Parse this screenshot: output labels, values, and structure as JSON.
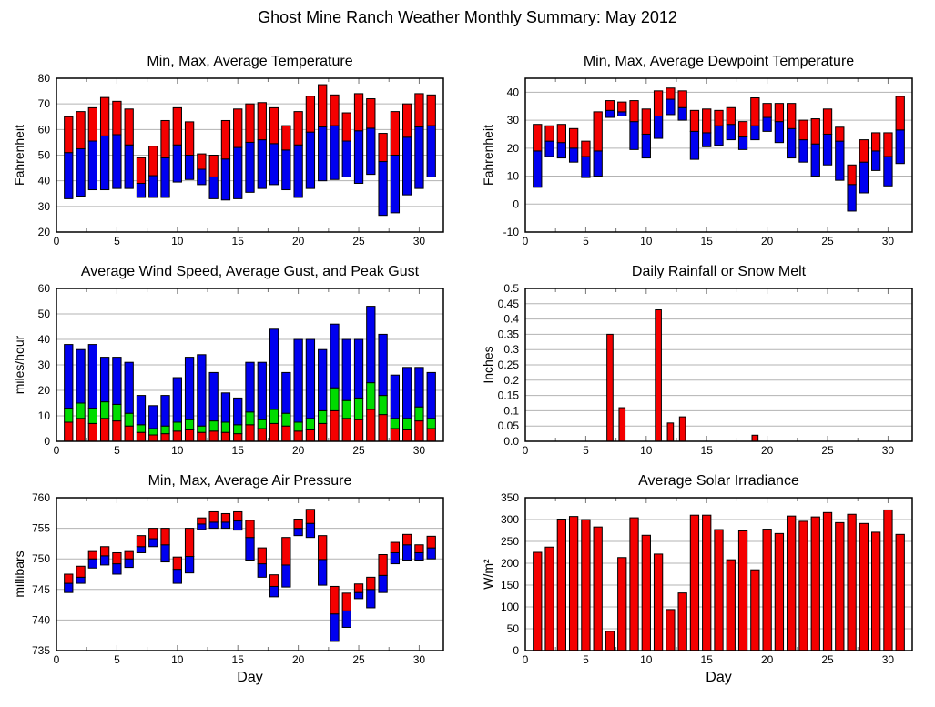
{
  "page": {
    "title": "Ghost Mine Ranch Weather Monthly Summary: May 2012"
  },
  "colors": {
    "max_red": "#f40000",
    "min_blue": "#0000f0",
    "gust_green": "#00dc00",
    "grid_gray": "#b3b3b3",
    "axis_black": "#000000"
  },
  "chart_data": [
    {
      "id": "temperature",
      "type": "floating-bar",
      "title": "Min, Max, Average Temperature",
      "ylabel": "Fahrenheit",
      "xlabel": "",
      "xlim": [
        0,
        32
      ],
      "ylim": [
        20,
        80
      ],
      "xticks": [
        0,
        5,
        10,
        15,
        20,
        25,
        30
      ],
      "x_minor_step": 2.5,
      "ytick_values": [
        20,
        30,
        40,
        50,
        60,
        70,
        80
      ],
      "ytick_labels": [
        "20",
        "30",
        "40",
        "50",
        "60",
        "70",
        "80"
      ],
      "grid": true,
      "bar_width_days": 0.7,
      "days": [
        1,
        2,
        3,
        4,
        5,
        6,
        7,
        8,
        9,
        10,
        11,
        12,
        13,
        14,
        15,
        16,
        17,
        18,
        19,
        20,
        21,
        22,
        23,
        24,
        25,
        26,
        27,
        28,
        29,
        30,
        31
      ],
      "series": [
        {
          "name": "min",
          "values": [
            33,
            34,
            36.5,
            36.5,
            37,
            37,
            33.5,
            33.5,
            33.5,
            39.5,
            40.5,
            38.5,
            33,
            32.5,
            33,
            35.5,
            37,
            38.5,
            36.5,
            33.5,
            37,
            40,
            40.5,
            41.5,
            39,
            42.5,
            26.5,
            27.5,
            34.5,
            37,
            41.5
          ]
        },
        {
          "name": "average",
          "values": [
            51,
            52.5,
            55.5,
            57.5,
            58,
            54,
            39,
            42,
            49,
            54,
            50,
            44.5,
            41.5,
            48.5,
            53,
            55,
            56,
            54.5,
            52,
            54,
            59,
            61,
            61.5,
            55.5,
            59.5,
            60.5,
            47.5,
            50,
            57,
            61,
            61.5
          ]
        },
        {
          "name": "max",
          "values": [
            65,
            67,
            68.5,
            72.5,
            71,
            68,
            49,
            53.5,
            63.5,
            68.5,
            63,
            50.5,
            50,
            63.5,
            68,
            70,
            70.5,
            68.5,
            61.5,
            67,
            73,
            77.5,
            73.5,
            66.5,
            74,
            72,
            58.5,
            67,
            70,
            74,
            73.5
          ]
        }
      ],
      "series_colors": [
        "#0000f0",
        "#f40000"
      ]
    },
    {
      "id": "dewpoint",
      "type": "floating-bar",
      "title": "Min, Max, Average Dewpoint Temperature",
      "ylabel": "Fahrenheit",
      "xlabel": "",
      "xlim": [
        0,
        32
      ],
      "ylim": [
        -10,
        45
      ],
      "xticks": [
        0,
        5,
        10,
        15,
        20,
        25,
        30
      ],
      "x_minor_step": 2.5,
      "ytick_values": [
        -10,
        0,
        10,
        20,
        30,
        40
      ],
      "ytick_labels": [
        "-10",
        "0",
        "10",
        "20",
        "30",
        "40"
      ],
      "grid": true,
      "bar_width_days": 0.7,
      "days": [
        1,
        2,
        3,
        4,
        5,
        6,
        7,
        8,
        9,
        10,
        11,
        12,
        13,
        14,
        15,
        16,
        17,
        18,
        19,
        20,
        21,
        22,
        23,
        24,
        25,
        26,
        27,
        28,
        29,
        30,
        31
      ],
      "series": [
        {
          "name": "min",
          "values": [
            6,
            17,
            16.5,
            15,
            9.5,
            10,
            31,
            31.5,
            19.5,
            16.5,
            23.5,
            32,
            30,
            16,
            20.5,
            21,
            23,
            19.5,
            23,
            26,
            22,
            16.5,
            15,
            10,
            14,
            8.5,
            -2.5,
            4,
            12,
            6.5,
            14.5
          ]
        },
        {
          "name": "average",
          "values": [
            19,
            22.5,
            22,
            20,
            17,
            19,
            33.5,
            33,
            29.5,
            25,
            31.5,
            37.5,
            34.5,
            26,
            25.5,
            28,
            28.5,
            24,
            28,
            31,
            29.5,
            27,
            23,
            21.5,
            25,
            22.5,
            7,
            15,
            19,
            17,
            26.5
          ]
        },
        {
          "name": "max",
          "values": [
            28.5,
            28,
            28.5,
            27,
            22.5,
            33,
            37,
            36.5,
            37,
            34,
            40.5,
            41.5,
            40.5,
            33.5,
            34,
            33.5,
            34.5,
            29.5,
            38,
            36,
            36,
            36,
            30,
            30.5,
            34,
            27.5,
            14,
            23,
            25.5,
            25.5,
            38.5
          ]
        }
      ],
      "series_colors": [
        "#0000f0",
        "#f40000"
      ]
    },
    {
      "id": "wind",
      "type": "stacked-bar",
      "title": "Average Wind Speed, Average Gust, and Peak Gust",
      "ylabel": "miles/hour",
      "xlabel": "",
      "xlim": [
        0,
        32
      ],
      "ylim": [
        0,
        60
      ],
      "xticks": [
        0,
        5,
        10,
        15,
        20,
        25,
        30
      ],
      "x_minor_step": 2.5,
      "ytick_values": [
        0,
        10,
        20,
        30,
        40,
        50,
        60
      ],
      "ytick_labels": [
        "0",
        "10",
        "20",
        "30",
        "40",
        "50",
        "60"
      ],
      "grid": true,
      "bar_width_days": 0.7,
      "days": [
        1,
        2,
        3,
        4,
        5,
        6,
        7,
        8,
        9,
        10,
        11,
        12,
        13,
        14,
        15,
        16,
        17,
        18,
        19,
        20,
        21,
        22,
        23,
        24,
        25,
        26,
        27,
        28,
        29,
        30,
        31
      ],
      "series": [
        {
          "name": "average-wind-speed",
          "values": [
            7.5,
            9,
            7,
            9,
            8,
            6,
            3.5,
            2.5,
            3,
            4,
            4.5,
            3.5,
            4,
            3.5,
            3,
            6.5,
            5,
            7,
            6,
            4,
            4.5,
            7,
            12,
            9,
            8.5,
            12.5,
            10.5,
            5,
            4.5,
            8,
            5
          ]
        },
        {
          "name": "average-gust",
          "values": [
            13,
            15,
            13,
            15.5,
            14.5,
            11,
            6.5,
            5,
            6,
            7.5,
            8.5,
            6,
            8,
            7.5,
            6.5,
            11.5,
            8.5,
            12.5,
            11,
            7.5,
            9,
            12,
            21,
            16,
            17,
            23,
            18,
            9,
            9,
            13.5,
            9
          ]
        },
        {
          "name": "peak-gust",
          "values": [
            38,
            36,
            38,
            33,
            33,
            31,
            18,
            14,
            18,
            25,
            33,
            34,
            27,
            19,
            17,
            31,
            31,
            44,
            27,
            40,
            40,
            36,
            46,
            40,
            40,
            53,
            42,
            26,
            29,
            29,
            27
          ]
        }
      ],
      "series_colors": [
        "#f40000",
        "#00dc00",
        "#0000f0"
      ]
    },
    {
      "id": "rainfall",
      "type": "bar",
      "title": "Daily Rainfall or Snow Melt",
      "ylabel": "Inches",
      "xlabel": "",
      "xlim": [
        0,
        32
      ],
      "ylim": [
        0,
        0.5
      ],
      "xticks": [
        0,
        5,
        10,
        15,
        20,
        25,
        30
      ],
      "x_minor_step": 2.5,
      "ytick_values": [
        0,
        0.05,
        0.1,
        0.15,
        0.2,
        0.25,
        0.3,
        0.35,
        0.4,
        0.45,
        0.5
      ],
      "ytick_labels": [
        "0.0",
        "0.05",
        "0.1",
        "0.15",
        "0.2",
        "0.25",
        "0.3",
        "0.35",
        "0.4",
        "0.45",
        "0.5"
      ],
      "grid": true,
      "bar_width_days": 0.5,
      "days": [
        1,
        2,
        3,
        4,
        5,
        6,
        7,
        8,
        9,
        10,
        11,
        12,
        13,
        14,
        15,
        16,
        17,
        18,
        19,
        20,
        21,
        22,
        23,
        24,
        25,
        26,
        27,
        28,
        29,
        30,
        31
      ],
      "series": [
        {
          "name": "daily-rainfall",
          "values": [
            0,
            0,
            0,
            0,
            0,
            0,
            0.35,
            0.11,
            0,
            0,
            0.43,
            0.06,
            0.08,
            0,
            0,
            0,
            0,
            0,
            0.02,
            0,
            0,
            0,
            0,
            0,
            0,
            0,
            0,
            0,
            0,
            0,
            0
          ]
        }
      ],
      "series_colors": [
        "#f40000"
      ]
    },
    {
      "id": "pressure",
      "type": "floating-bar",
      "title": "Min, Max, Average Air Pressure",
      "ylabel": "millibars",
      "xlabel": "Day",
      "xlim": [
        0,
        32
      ],
      "ylim": [
        735,
        760
      ],
      "xticks": [
        0,
        5,
        10,
        15,
        20,
        25,
        30
      ],
      "x_minor_step": 2.5,
      "ytick_values": [
        735,
        740,
        745,
        750,
        755,
        760
      ],
      "ytick_labels": [
        "735",
        "740",
        "745",
        "750",
        "755",
        "760"
      ],
      "grid": true,
      "bar_width_days": 0.7,
      "days": [
        1,
        2,
        3,
        4,
        5,
        6,
        7,
        8,
        9,
        10,
        11,
        12,
        13,
        14,
        15,
        16,
        17,
        18,
        19,
        20,
        21,
        22,
        23,
        24,
        25,
        26,
        27,
        28,
        29,
        30,
        31
      ],
      "series": [
        {
          "name": "min",
          "values": [
            744.5,
            746,
            748.5,
            749,
            747.5,
            748.6,
            751,
            752,
            749.5,
            746,
            747.7,
            754.8,
            755,
            755,
            754.7,
            749.8,
            747,
            743.8,
            745.4,
            753.8,
            753.5,
            745.7,
            736.5,
            738.8,
            743.5,
            742,
            744.5,
            749.2,
            749.8,
            749.8,
            750
          ]
        },
        {
          "name": "average",
          "values": [
            746,
            747,
            750,
            750.5,
            749.2,
            750,
            752,
            753.3,
            752.3,
            748.3,
            750.4,
            755.7,
            756,
            756,
            756.2,
            753.5,
            749.2,
            745.5,
            749,
            755,
            755.8,
            749.9,
            741,
            741.5,
            744.5,
            745,
            747.3,
            751,
            752.3,
            751,
            751.8
          ]
        },
        {
          "name": "max",
          "values": [
            747.5,
            748.8,
            751.2,
            752,
            751,
            751.2,
            753.8,
            755,
            755,
            750.3,
            755,
            756.7,
            757.7,
            757.4,
            757.7,
            756.3,
            751.8,
            747.4,
            753.5,
            756.5,
            758.1,
            753.8,
            745.5,
            744.4,
            745.9,
            747,
            750.7,
            752.7,
            754,
            752.3,
            753.7
          ]
        }
      ],
      "series_colors": [
        "#0000f0",
        "#f40000"
      ]
    },
    {
      "id": "solar",
      "type": "bar",
      "title": "Average Solar Irradiance",
      "ylabel": "W/m²",
      "xlabel": "Day",
      "xlim": [
        0,
        32
      ],
      "ylim": [
        0,
        350
      ],
      "xticks": [
        0,
        5,
        10,
        15,
        20,
        25,
        30
      ],
      "x_minor_step": 2.5,
      "ytick_values": [
        0,
        50,
        100,
        150,
        200,
        250,
        300,
        350
      ],
      "ytick_labels": [
        "0",
        "50",
        "100",
        "150",
        "200",
        "250",
        "300",
        "350"
      ],
      "grid": true,
      "bar_width_days": 0.7,
      "days": [
        1,
        2,
        3,
        4,
        5,
        6,
        7,
        8,
        9,
        10,
        11,
        12,
        13,
        14,
        15,
        16,
        17,
        18,
        19,
        20,
        21,
        22,
        23,
        24,
        25,
        26,
        27,
        28,
        29,
        30,
        31
      ],
      "series": [
        {
          "name": "average-solar-irradiance",
          "values": [
            225,
            237,
            301,
            307,
            300,
            283,
            44,
            213,
            304,
            264,
            221,
            94,
            132,
            310,
            310,
            277,
            208,
            274,
            185,
            278,
            268,
            308,
            296,
            306,
            316,
            293,
            312,
            291,
            271,
            322,
            266
          ]
        }
      ],
      "series_colors": [
        "#f40000"
      ]
    }
  ]
}
